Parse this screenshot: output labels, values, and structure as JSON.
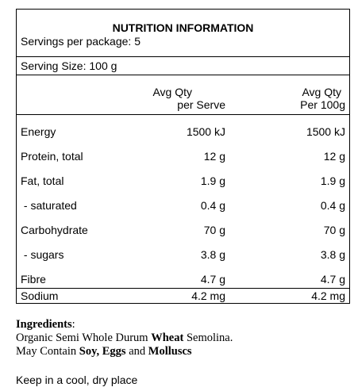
{
  "panel": {
    "title": "NUTRITION INFORMATION",
    "servings_per_package": "Servings per package: 5",
    "serving_size": "Serving Size: 100 g",
    "col1_header_line1": "Avg Qty",
    "col1_header_line2": "per Serve",
    "col2_header_line1": "Avg Qty",
    "col2_header_line2": "Per 100g",
    "rows": [
      {
        "label": "Energy",
        "per_serve": "1500 kJ",
        "per_100g": "1500 kJ"
      },
      {
        "label": "Protein, total",
        "per_serve": "12 g",
        "per_100g": "12 g"
      },
      {
        "label": "Fat, total",
        "per_serve": "1.9 g",
        "per_100g": "1.9 g"
      },
      {
        "label": " - saturated",
        "per_serve": "0.4 g",
        "per_100g": "0.4 g"
      },
      {
        "label": "Carbohydrate",
        "per_serve": "70 g",
        "per_100g": "70 g"
      },
      {
        "label": " - sugars",
        "per_serve": "3.8 g",
        "per_100g": "3.8 g"
      },
      {
        "label": "Fibre",
        "per_serve": "4.7 g",
        "per_100g": "4.7 g"
      },
      {
        "label": "Sodium",
        "per_serve": "4.2 mg",
        "per_100g": "4.2 mg"
      }
    ]
  },
  "ingredients": {
    "heading": "Ingredients",
    "heading_colon": ":",
    "line1_a": "Organic Semi Whole Durum ",
    "line1_b": "Wheat",
    "line1_c": " Semolina.",
    "line2_a": "May Contain ",
    "line2_b": "Soy",
    "line2_c": ", ",
    "line2_d": "Eggs",
    "line2_e": " and ",
    "line2_f": "Molluscs"
  },
  "storage": "Keep in a cool, dry place"
}
